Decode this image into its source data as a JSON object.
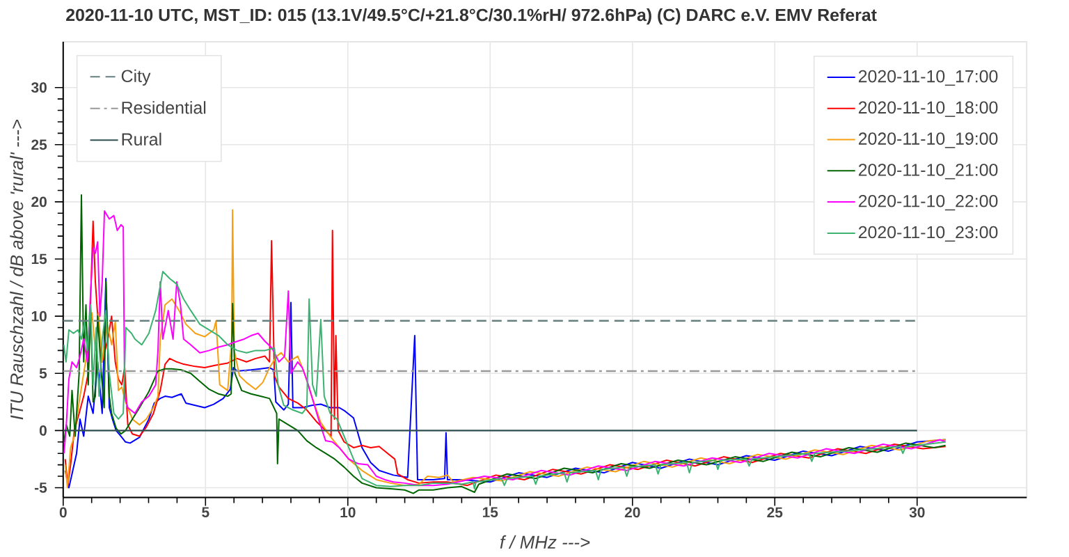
{
  "chart_data": {
    "type": "line",
    "title": "2020-11-10  UTC, MST_ID: 015  (13.1V/49.5°C/+21.8°C/30.1%rH/ 972.6hPa)  (C) DARC e.V. EMV Referat",
    "xlabel": "f  / MHz --->",
    "ylabel": "ITU Rauschzahl / dB above 'rural' --->",
    "xlim": [
      0,
      33.85
    ],
    "ylim": [
      -5.85,
      34
    ],
    "xticks": [
      0,
      5,
      10,
      15,
      20,
      25,
      30
    ],
    "yticks": [
      -5,
      0,
      5,
      10,
      15,
      20,
      25,
      30
    ],
    "grid": true,
    "legend": "top right",
    "ref_lines": [
      {
        "axis": "y",
        "value": 9.6,
        "label": "City",
        "color": "#66807f",
        "line_style": "dashed"
      },
      {
        "axis": "y",
        "value": 5.2,
        "label": "Residential",
        "color": "#999999",
        "line_style": "dashdot"
      },
      {
        "axis": "y",
        "value": 0,
        "label": "Rural",
        "color": "#2f4f4f",
        "line_style": "solid"
      }
    ],
    "series": [
      {
        "name": "2020-11-10_17:00",
        "color": "#0000ff",
        "x": [
          0.07,
          0.2,
          0.31,
          0.47,
          0.59,
          0.72,
          0.88,
          1.05,
          1.21,
          1.37,
          1.5,
          1.62,
          1.73,
          1.86,
          2.03,
          2.19,
          2.35,
          2.68,
          3.01,
          3.2,
          3.4,
          3.58,
          3.82,
          4.15,
          4.31,
          4.64,
          4.97,
          5.29,
          5.62,
          5.87,
          5.98,
          6.11,
          6.6,
          6.93,
          7.25,
          7.4,
          7.47,
          7.75,
          7.91,
          8.0,
          8.07,
          8.4,
          8.73,
          9.05,
          9.38,
          9.7,
          9.9,
          10.2,
          10.5,
          10.8,
          11.1,
          11.6,
          12.1,
          12.35,
          12.45,
          13.0,
          13.4,
          13.45,
          13.5,
          14,
          15,
          16,
          17,
          18,
          19,
          20,
          21,
          22,
          23,
          24,
          25,
          26,
          27,
          28,
          29,
          30,
          31
        ],
        "values": [
          -3.5,
          -5.0,
          -3.8,
          -2.0,
          1.0,
          -0.5,
          3.0,
          1.5,
          6.0,
          1.5,
          13.3,
          2.0,
          1.0,
          0.0,
          -0.5,
          -1.0,
          -1.1,
          -0.6,
          1.0,
          2.4,
          2.8,
          3.0,
          2.9,
          3.2,
          2.4,
          2.2,
          2.0,
          2.3,
          2.8,
          3.6,
          5.5,
          5.2,
          5.3,
          5.4,
          5.5,
          5.3,
          2.5,
          1.8,
          2.3,
          11.2,
          2.0,
          2.0,
          2.2,
          2.3,
          2.0,
          2.0,
          1.7,
          1.1,
          -1.5,
          -2.8,
          -3.5,
          -3.9,
          -4.1,
          8.3,
          -4.3,
          -4.3,
          -4.2,
          -0.2,
          -4.3,
          -4.3,
          -4.5,
          -3.7,
          -4.1,
          -3.3,
          -3.7,
          -2.8,
          -3.3,
          -2.5,
          -3.0,
          -2.2,
          -2.6,
          -1.8,
          -2.2,
          -1.4,
          -1.8,
          -1.0,
          -0.8
        ]
      },
      {
        "name": "2020-11-10_18:00",
        "color": "#ff0000",
        "x": [
          0.07,
          0.16,
          0.26,
          0.39,
          0.56,
          0.72,
          0.88,
          1.05,
          1.13,
          1.24,
          1.37,
          1.57,
          1.7,
          1.83,
          1.94,
          2.06,
          2.16,
          2.27,
          2.43,
          2.68,
          2.92,
          3.17,
          3.41,
          3.58,
          3.74,
          3.99,
          4.23,
          4.64,
          4.97,
          5.33,
          5.78,
          6.11,
          6.44,
          6.76,
          7.09,
          7.25,
          7.32,
          7.42,
          7.58,
          7.91,
          8.24,
          8.56,
          8.89,
          9.22,
          9.41,
          9.46,
          9.53,
          9.58,
          9.66,
          9.87,
          10.2,
          10.5,
          10.8,
          11.1,
          11.4,
          11.65,
          11.75,
          12.1,
          12.5,
          13.0,
          13.5,
          14.2,
          15.2,
          16.2,
          17.2,
          18.2,
          19.2,
          20.2,
          21.2,
          22.2,
          23.2,
          24.2,
          25.2,
          26.2,
          27.2,
          28.2,
          29.2,
          30.2,
          31
        ],
        "values": [
          -2.5,
          -4.8,
          -3.0,
          0.0,
          1.5,
          3.0,
          5.0,
          18.3,
          13.0,
          9.0,
          6.0,
          8.0,
          10.0,
          6.0,
          4.5,
          4.0,
          5.5,
          0.5,
          -0.3,
          -0.5,
          0.3,
          1.5,
          3.5,
          5.8,
          6.3,
          6.0,
          5.8,
          5.6,
          5.5,
          5.7,
          5.9,
          6.3,
          6.0,
          6.3,
          6.5,
          6.0,
          16.6,
          4.8,
          3.8,
          2.8,
          2.4,
          1.8,
          0.8,
          0.0,
          -0.5,
          17.5,
          1.0,
          8.3,
          0.0,
          -1.0,
          -1.5,
          -1.3,
          -1.5,
          -1.4,
          -2.0,
          -2.5,
          -3.8,
          -4.3,
          -4.6,
          -4.5,
          -4.5,
          -4.8,
          -3.9,
          -4.3,
          -3.4,
          -3.8,
          -3.0,
          -3.4,
          -2.6,
          -3.1,
          -2.3,
          -2.8,
          -2.0,
          -2.4,
          -1.6,
          -2.0,
          -1.2,
          -1.6,
          -1.4
        ]
      },
      {
        "name": "2020-11-10_19:00",
        "color": "#f5a011",
        "x": [
          0.07,
          0.15,
          0.26,
          0.39,
          0.56,
          0.72,
          0.88,
          1.01,
          1.13,
          1.24,
          1.37,
          1.54,
          1.7,
          1.83,
          1.94,
          2.06,
          2.19,
          2.43,
          2.68,
          2.92,
          3.17,
          3.33,
          3.41,
          3.58,
          3.82,
          4.07,
          4.31,
          4.64,
          4.97,
          5.29,
          5.37,
          5.5,
          5.78,
          5.92,
          5.95,
          6.01,
          6.19,
          6.44,
          6.76,
          7.01,
          7.25,
          7.5,
          7.66,
          7.91,
          8.24,
          8.48,
          8.73,
          9.05,
          9.38,
          9.7,
          10.03,
          10.5,
          11.0,
          11.5,
          12.0,
          12.5,
          12.8,
          13.2,
          13.5,
          13.7,
          14.4,
          15.4,
          16.4,
          17.4,
          18.4,
          19.4,
          20.4,
          21.4,
          22.4,
          23.4,
          24.4,
          25.4,
          26.4,
          27.4,
          28.4,
          29.4,
          30.4,
          31
        ],
        "values": [
          -3.0,
          -5.0,
          -1.5,
          -0.5,
          2.5,
          5.0,
          7.5,
          10.3,
          7.0,
          10.3,
          6.0,
          9.5,
          7.5,
          9.5,
          3.5,
          3.8,
          2.5,
          1.0,
          0.5,
          1.0,
          2.0,
          3.0,
          8.0,
          11.0,
          11.5,
          10.5,
          9.3,
          8.5,
          8.2,
          8.8,
          9.6,
          4.0,
          3.5,
          8.0,
          19.3,
          7.0,
          4.8,
          4.2,
          3.6,
          4.2,
          5.5,
          6.5,
          6.8,
          6.0,
          6.5,
          5.0,
          3.0,
          0.7,
          -0.5,
          -1.5,
          -2.5,
          -3.5,
          -4.3,
          -4.6,
          -4.8,
          -4.7,
          -4.0,
          -4.1,
          -3.9,
          -4.5,
          -4.1,
          -4.4,
          -3.6,
          -4.0,
          -3.2,
          -3.6,
          -2.7,
          -3.2,
          -2.4,
          -2.9,
          -2.1,
          -2.5,
          -1.7,
          -2.1,
          -1.3,
          -1.7,
          -0.9,
          -0.8
        ]
      },
      {
        "name": "2020-11-10_21:00",
        "color": "#006400",
        "x": [
          0.03,
          0.11,
          0.23,
          0.31,
          0.42,
          0.56,
          0.64,
          0.72,
          0.8,
          0.88,
          0.96,
          1.05,
          1.13,
          1.21,
          1.34,
          1.44,
          1.5,
          1.62,
          1.7,
          1.86,
          2.03,
          2.19,
          2.43,
          2.68,
          3.01,
          3.33,
          3.58,
          3.82,
          4.15,
          4.48,
          4.8,
          5.13,
          5.46,
          5.78,
          5.9,
          5.95,
          6.03,
          6.27,
          6.6,
          6.93,
          7.25,
          7.5,
          7.53,
          7.58,
          7.91,
          8.24,
          8.56,
          8.89,
          9.22,
          9.54,
          9.87,
          10.2,
          10.5,
          11.0,
          11.5,
          12.0,
          12.3,
          12.5,
          13.0,
          13.5,
          14.0,
          14.45,
          14.6,
          15.6,
          16.6,
          17.6,
          18.6,
          19.6,
          20.6,
          21.6,
          22.6,
          23.6,
          24.6,
          25.6,
          26.6,
          27.6,
          28.6,
          29.6,
          30.6,
          31
        ],
        "values": [
          -1.0,
          0.5,
          -0.5,
          3.5,
          -0.5,
          5.0,
          20.6,
          6.0,
          11.0,
          4.0,
          11.0,
          2.5,
          3.0,
          10.0,
          5.0,
          2.0,
          13.0,
          3.0,
          1.5,
          0.2,
          -0.3,
          0.0,
          1.0,
          2.0,
          3.4,
          5.2,
          5.4,
          5.4,
          5.3,
          5.0,
          4.3,
          3.6,
          3.2,
          3.0,
          3.2,
          11.1,
          5.0,
          3.5,
          3.2,
          3.0,
          2.8,
          1.5,
          -2.9,
          1.0,
          0.5,
          0.0,
          -0.9,
          -1.5,
          -2.0,
          -2.5,
          -3.2,
          -4.0,
          -4.6,
          -5.0,
          -5.1,
          -5.2,
          -5.5,
          -5.2,
          -5.2,
          -5.0,
          -4.9,
          -5.4,
          -4.7,
          -3.8,
          -4.2,
          -3.3,
          -3.7,
          -2.9,
          -3.3,
          -2.6,
          -3.0,
          -2.3,
          -2.7,
          -1.9,
          -2.3,
          -1.5,
          -1.9,
          -1.1,
          -1.5,
          -1.3
        ]
      },
      {
        "name": "2020-11-10_22:00",
        "color": "#ff00ff",
        "x": [
          0.03,
          0.11,
          0.2,
          0.31,
          0.47,
          0.59,
          0.72,
          0.85,
          0.96,
          1.05,
          1.13,
          1.21,
          1.29,
          1.37,
          1.45,
          1.62,
          1.78,
          1.9,
          2.03,
          2.11,
          2.16,
          2.27,
          2.52,
          2.76,
          3.01,
          3.25,
          3.33,
          3.41,
          3.5,
          3.69,
          3.86,
          3.99,
          4.12,
          4.23,
          4.48,
          4.8,
          5.13,
          5.46,
          5.78,
          6.11,
          6.36,
          6.6,
          6.85,
          7.09,
          7.34,
          7.58,
          7.78,
          7.91,
          8.0,
          8.24,
          8.4,
          8.56,
          8.73,
          8.97,
          9.22,
          9.46,
          9.7,
          10.03,
          10.36,
          10.7,
          11.0,
          11.3,
          11.6,
          12.0,
          12.5,
          13.0,
          13.5,
          14.8,
          15.8,
          16.8,
          17.8,
          18.8,
          19.8,
          20.8,
          21.8,
          22.8,
          23.8,
          24.8,
          25.8,
          26.8,
          27.8,
          28.8,
          29.8,
          30.8,
          31
        ],
        "values": [
          -2.0,
          0.5,
          4.5,
          6.0,
          5.5,
          6.5,
          8.0,
          6.0,
          12.0,
          16.0,
          15.5,
          16.5,
          10.0,
          13.0,
          19.2,
          18.5,
          18.8,
          17.5,
          18.0,
          17.8,
          3.0,
          2.0,
          1.5,
          2.5,
          3.0,
          4.0,
          7.0,
          13.0,
          8.0,
          10.5,
          8.0,
          13.0,
          11.0,
          8.0,
          7.5,
          6.8,
          7.0,
          7.3,
          7.5,
          7.8,
          8.0,
          8.3,
          8.5,
          7.8,
          7.2,
          6.0,
          6.5,
          12.2,
          5.0,
          6.0,
          5.5,
          4.4,
          3.0,
          1.0,
          -0.9,
          -1.0,
          -1.5,
          -2.5,
          -2.9,
          -3.0,
          -4.0,
          -4.3,
          -4.5,
          -4.6,
          -4.8,
          -4.8,
          -4.7,
          -4.0,
          -4.3,
          -3.5,
          -3.9,
          -3.1,
          -3.5,
          -2.7,
          -3.1,
          -2.4,
          -2.8,
          -2.0,
          -2.4,
          -1.6,
          -2.0,
          -1.2,
          -1.6,
          -0.8,
          -1.0
        ]
      },
      {
        "name": "2020-11-10_23:00",
        "color": "#3cb371",
        "x": [
          0.02,
          0.1,
          0.2,
          0.36,
          0.52,
          0.64,
          0.75,
          0.85,
          0.96,
          1.05,
          1.16,
          1.26,
          1.37,
          1.5,
          1.62,
          1.78,
          1.94,
          2.11,
          2.2,
          2.4,
          2.52,
          2.76,
          3.01,
          3.25,
          3.5,
          3.74,
          3.99,
          4.23,
          4.48,
          4.8,
          5.13,
          5.46,
          5.78,
          6.11,
          6.44,
          6.76,
          7.09,
          7.42,
          7.55,
          7.75,
          8.07,
          8.4,
          8.56,
          8.64,
          8.76,
          8.89,
          9.05,
          9.17,
          9.38,
          9.62,
          9.87,
          10.2,
          10.5,
          11.0,
          11.5,
          12.0,
          12.5,
          13.0,
          13.5,
          14,
          14.4,
          14.45,
          14.5,
          15.4,
          15.5,
          15.6,
          16.5,
          16.6,
          16.7,
          17.6,
          17.7,
          17.8,
          18.7,
          18.8,
          18.9,
          19.7,
          19.8,
          19.9,
          20.8,
          20.9,
          21.0,
          21.9,
          22.0,
          22.1,
          22.9,
          23.0,
          23.1,
          24.0,
          24.1,
          24.2,
          25,
          26.2,
          26.3,
          26.4,
          27,
          28,
          29.4,
          29.5,
          29.6,
          30,
          31
        ],
        "values": [
          7.5,
          6.0,
          8.8,
          8.5,
          8.8,
          8.0,
          9.5,
          7.0,
          11.0,
          4.0,
          9.0,
          3.0,
          8.0,
          10.5,
          5.0,
          1.5,
          1.0,
          1.5,
          9.0,
          8.5,
          8.0,
          7.5,
          8.5,
          10.5,
          13.9,
          13.3,
          12.8,
          11.5,
          10.5,
          9.3,
          8.8,
          8.3,
          7.5,
          7.0,
          6.8,
          7.0,
          7.0,
          7.2,
          4.0,
          2.2,
          1.8,
          1.5,
          2.0,
          11.5,
          4.0,
          3.0,
          9.7,
          3.0,
          1.5,
          1.0,
          -0.5,
          -2.5,
          -4.2,
          -4.8,
          -4.9,
          -4.8,
          -4.8,
          -4.6,
          -4.6,
          -4.7,
          -4.5,
          -5.1,
          -4.5,
          -4.2,
          -4.8,
          -4.2,
          -4.0,
          -4.7,
          -4.0,
          -3.7,
          -4.5,
          -3.7,
          -3.5,
          -4.3,
          -3.4,
          -3.2,
          -4.0,
          -3.2,
          -3.0,
          -3.8,
          -3.0,
          -2.8,
          -3.7,
          -2.8,
          -2.6,
          -3.4,
          -2.6,
          -2.5,
          -3.1,
          -2.5,
          -2.3,
          -2.0,
          -2.7,
          -2.0,
          -1.9,
          -1.7,
          -1.4,
          -2.0,
          -1.4,
          -1.3,
          -1.0
        ]
      }
    ]
  }
}
